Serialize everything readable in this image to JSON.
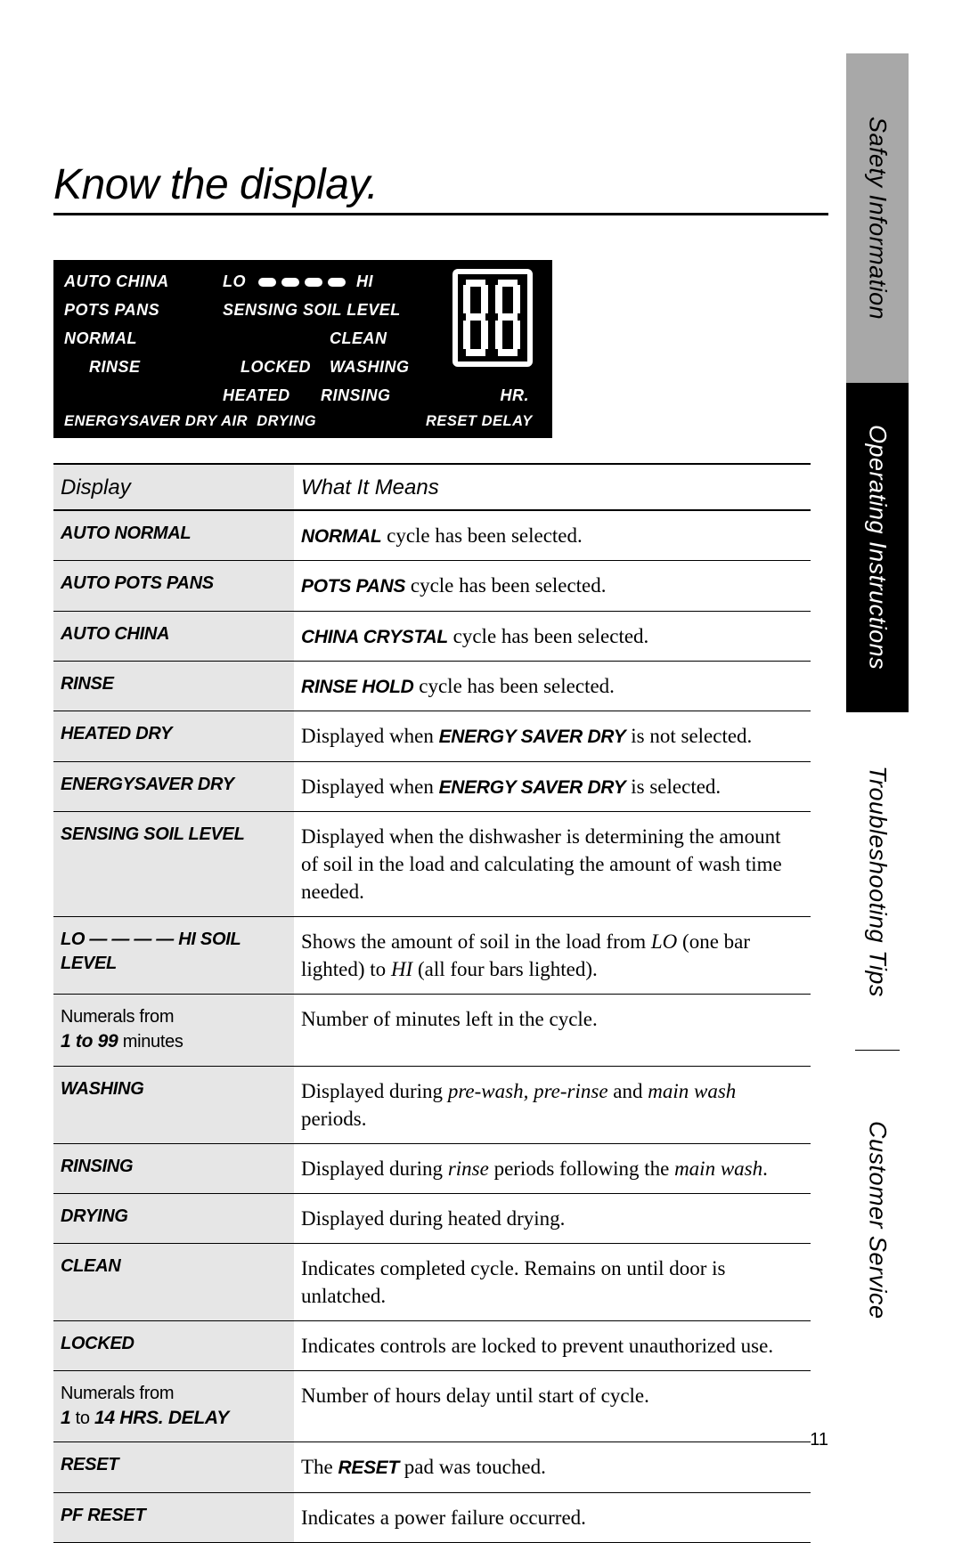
{
  "title": "Know the display.",
  "page_number": "11",
  "sidebar": {
    "safety": "Safety Information",
    "operating": "Operating Instructions",
    "trouble": "Troubleshooting Tips",
    "customer": "Customer Service"
  },
  "display_panel": {
    "r1a": "AUTO CHINA",
    "r1b": "LO",
    "r1c": "HI",
    "r2a": "POTS PANS",
    "r2b": "SENSING",
    "r2c": "SOIL LEVEL",
    "r3a": "NORMAL",
    "r3b": "CLEAN",
    "r4a": "RINSE",
    "r4b": "LOCKED",
    "r4c": "WASHING",
    "r5a": "HEATED",
    "r5b": "RINSING",
    "r5c": "HR.",
    "r6a": "ENERGYSAVER",
    "r6b": "DRY",
    "r6c": "AIR",
    "r6d": "DRYING",
    "r6e": "RESET",
    "r6f": "DELAY",
    "digits": "88"
  },
  "table": {
    "head_display": "Display",
    "head_meaning": "What It Means",
    "rows": [
      {
        "d": "AUTO NORMAL",
        "m": "<span class='em'>NORMAL</span> cycle has been selected."
      },
      {
        "d": "AUTO POTS PANS",
        "m": "<span class='em'>POTS PANS</span> cycle has been selected."
      },
      {
        "d": "AUTO CHINA",
        "m": "<span class='em'>CHINA CRYSTAL</span> cycle has been selected."
      },
      {
        "d": "RINSE",
        "m": "<span class='em'>RINSE HOLD</span> cycle has been selected."
      },
      {
        "d": "HEATED DRY",
        "m": "Displayed when <span class='em'>ENERGY SAVER DRY</span> is not selected."
      },
      {
        "d": "ENERGYSAVER DRY",
        "m": "Displayed when <span class='em'>ENERGY SAVER DRY</span> is selected."
      },
      {
        "d": "SENSING SOIL LEVEL",
        "m": "Displayed when the dishwasher is determining the amount of soil in the load and calculating the amount of wash time needed."
      },
      {
        "d": "LO — — — — HI SOIL LEVEL",
        "m": "Shows the amount of soil in the load from <span class='em2'>LO</span> (one bar lighted) to <span class='em2'>HI</span> (all four bars lighted)."
      },
      {
        "d": "<span style='font-style:normal;font-weight:normal'>Numerals from</span><br><span class='em'>1 to 99</span> <span style='font-style:normal;font-weight:normal'>minutes</span>",
        "m": "Number of minutes left in the cycle."
      },
      {
        "d": "WASHING",
        "m": "Displayed during <span class='em2'>pre-wash, pre-rinse</span> and <span class='em2'>main wash</span> periods."
      },
      {
        "d": "RINSING",
        "m": "Displayed during <span class='em2'>rinse</span> periods following the <span class='em2'>main wash</span>."
      },
      {
        "d": "DRYING",
        "m": "Displayed during heated drying."
      },
      {
        "d": "CLEAN",
        "m": "Indicates completed cycle. Remains on until door is unlatched."
      },
      {
        "d": "LOCKED",
        "m": "Indicates controls are locked to prevent unauthorized use."
      },
      {
        "d": "<span style='font-style:normal;font-weight:normal'>Numerals from</span><br><span class='em'>1</span> <span style='font-style:normal;font-weight:normal'>to</span> <span class='em'>14 HRS. DELAY</span>",
        "m": "Number of hours delay until start of cycle."
      },
      {
        "d": "RESET",
        "m": "The <span class='em'>RESET</span> pad was touched."
      },
      {
        "d": "PF RESET",
        "m": "Indicates a power failure occurred."
      }
    ]
  },
  "colors": {
    "sidebar_gray": "#a8a8a8",
    "table_col_bg": "#e6e6e6",
    "black": "#000000",
    "white": "#ffffff"
  }
}
